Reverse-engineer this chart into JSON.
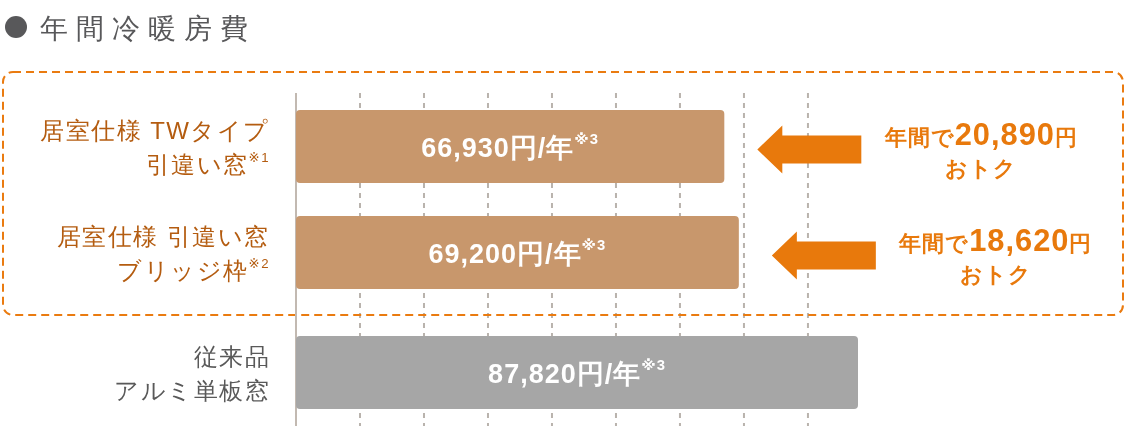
{
  "chart_data": {
    "type": "bar",
    "orientation": "horizontal",
    "title": "年間冷暖房費",
    "categories": [
      "居室仕様 TWタイプ引違い窓$^{※1}$",
      "居室仕様 引違い窓ブリッジ枠$^{※2}$",
      "従来品アルミ単板窓"
    ],
    "values": [
      66930,
      69200,
      87820
    ],
    "colors": [
      "#c8976c",
      "#c8976c",
      "#a6a6a6"
    ],
    "value_labels": [
      "66,930円/年$^{※3}$",
      "69,200円/年$^{※3}$",
      "87,820円/年$^{※3}$"
    ],
    "xticks": [
      {
        "value": 0,
        "label": null
      },
      {
        "value": 10000,
        "label": null
      },
      {
        "value": 20000,
        "label": null
      },
      {
        "value": 30000,
        "label": null
      },
      {
        "value": 40000,
        "label": null
      },
      {
        "value": 50000,
        "label": null
      },
      {
        "value": 60000,
        "label": null
      },
      {
        "value": 70000,
        "label": null
      },
      {
        "value": 80000,
        "label": null
      }
    ],
    "grid": "x",
    "tick_labels": "y",
    "annotations": [
      "年間で20,890円おトク",
      "年間で18,620円おトク"
    ]
  }
}
